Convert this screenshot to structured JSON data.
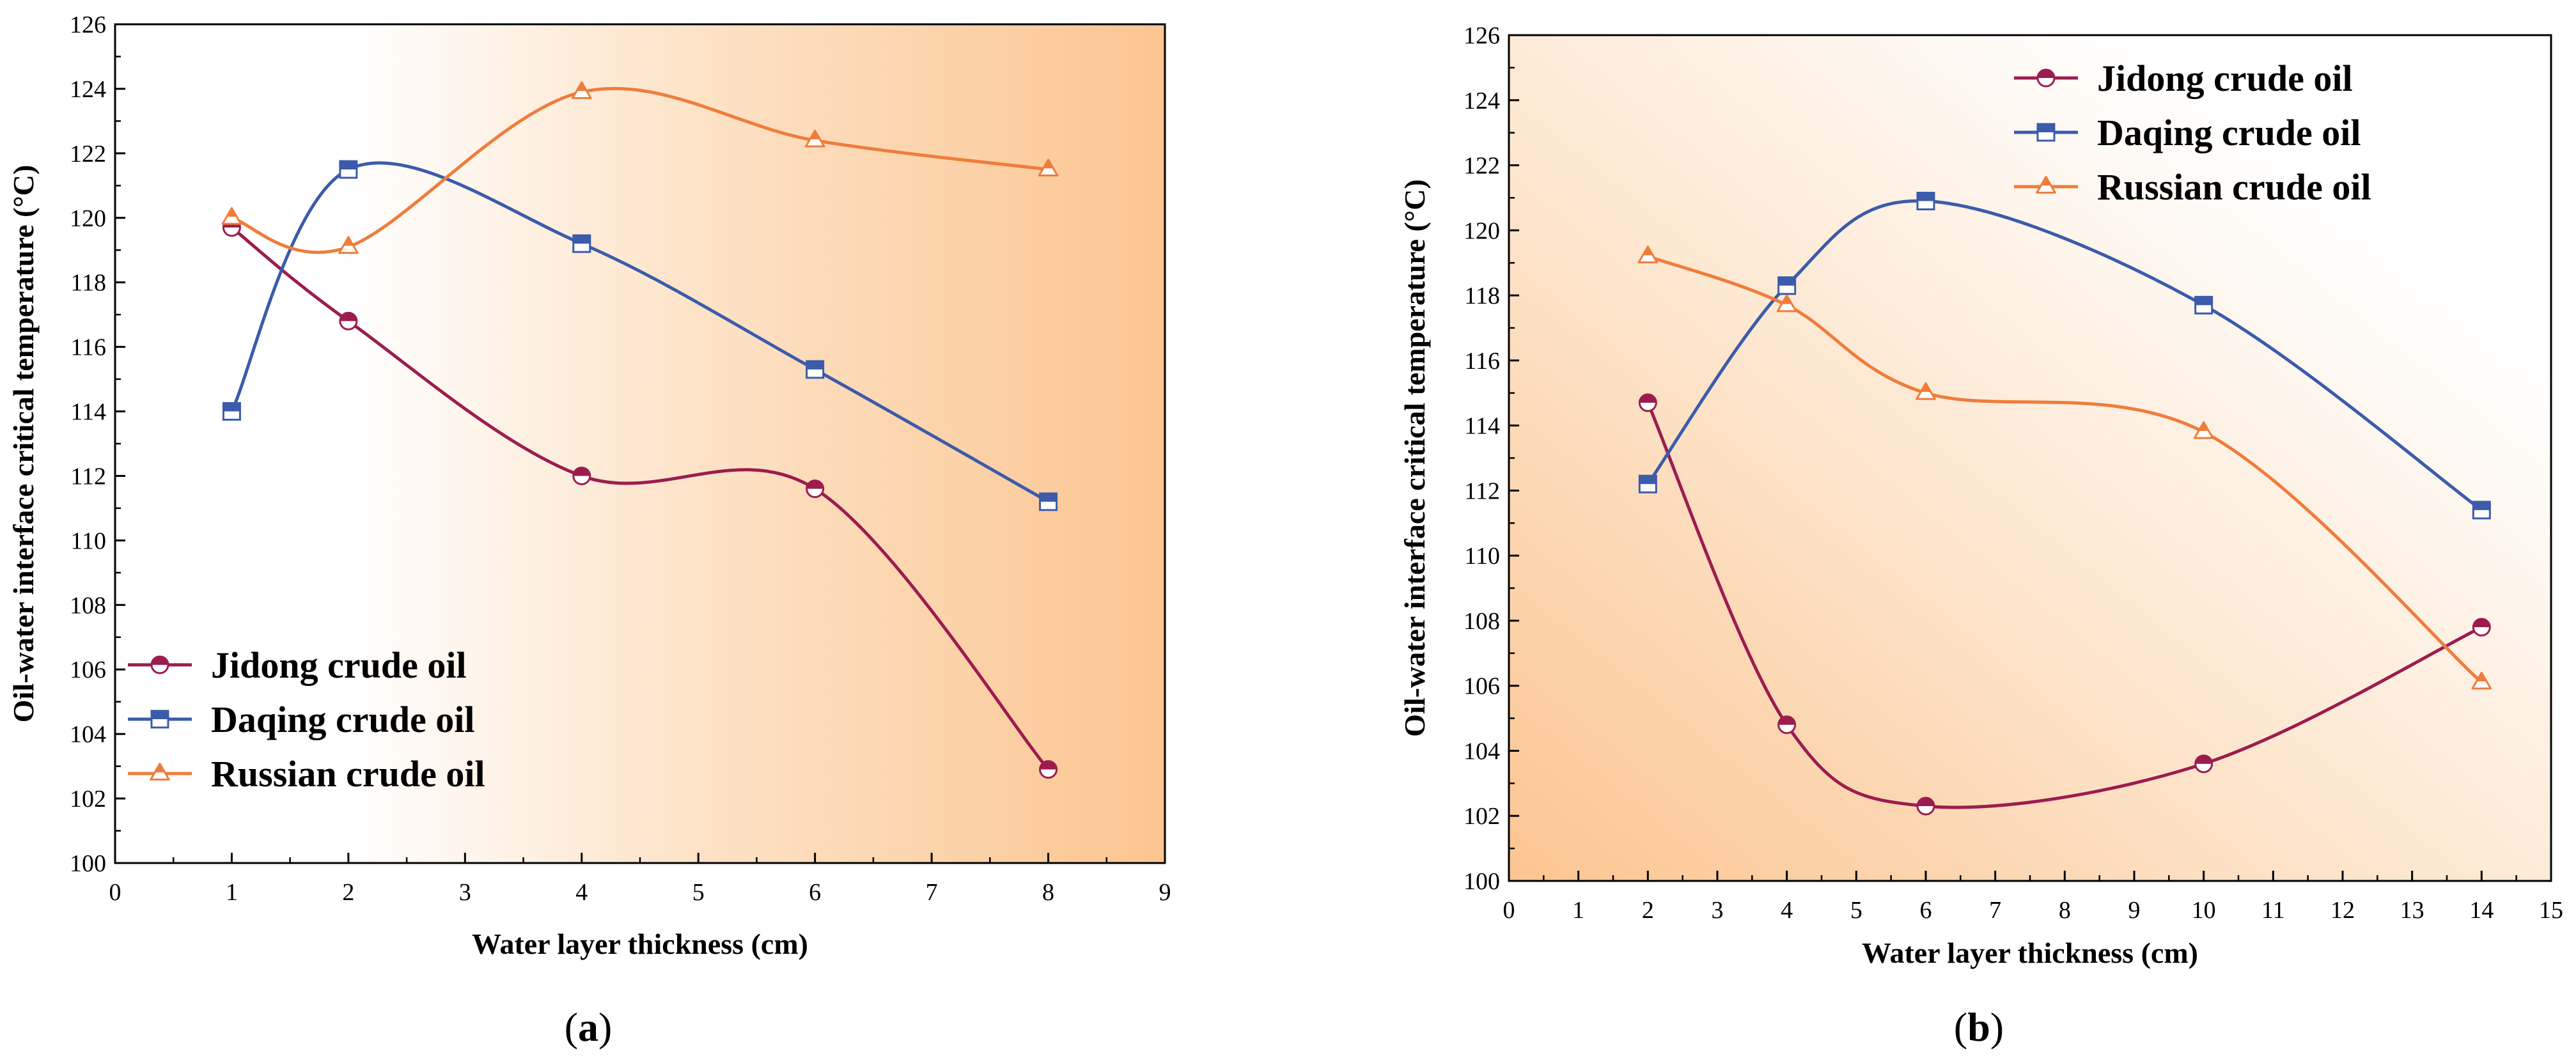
{
  "chart_data": [
    {
      "type": "line",
      "panel_label": {
        "open": "(",
        "letter": "a",
        "close": ")"
      },
      "xlabel": "Water layer thickness (cm)",
      "ylabel": "Oil-water interface critical temperature (°C)",
      "xlim": [
        0,
        9
      ],
      "ylim": [
        100,
        126
      ],
      "xticks": [
        0,
        1,
        2,
        3,
        4,
        5,
        6,
        7,
        8,
        9
      ],
      "yticks": [
        100,
        102,
        104,
        106,
        108,
        110,
        112,
        114,
        116,
        118,
        120,
        122,
        124,
        126
      ],
      "legend_position": "lower-left",
      "background_gradient": "white-left to orange-right",
      "series": [
        {
          "name": "Jidong crude oil",
          "color": "#9c1c4f",
          "marker": "circle-half",
          "x": [
            1,
            2,
            4,
            6,
            8
          ],
          "values": [
            119.7,
            116.8,
            112.0,
            111.6,
            102.9
          ]
        },
        {
          "name": "Daqing crude oil",
          "color": "#3b5bab",
          "marker": "square-half",
          "x": [
            1,
            2,
            4,
            6,
            8
          ],
          "values": [
            114.0,
            121.5,
            119.2,
            115.3,
            111.2
          ]
        },
        {
          "name": "Russian crude oil",
          "color": "#f07c3a",
          "marker": "triangle-half",
          "x": [
            1,
            2,
            4,
            6,
            8
          ],
          "values": [
            120.0,
            119.1,
            123.9,
            122.4,
            121.5
          ]
        }
      ]
    },
    {
      "type": "line",
      "panel_label": {
        "open": "(",
        "letter": "b",
        "close": ")"
      },
      "xlabel": "Water layer thickness (cm)",
      "ylabel": "Oil-water interface critical temperature (°C)",
      "xlim": [
        0,
        15
      ],
      "ylim": [
        100,
        126
      ],
      "xticks": [
        0,
        1,
        2,
        3,
        4,
        5,
        6,
        7,
        8,
        9,
        10,
        11,
        12,
        13,
        14,
        15
      ],
      "yticks": [
        100,
        102,
        104,
        106,
        108,
        110,
        112,
        114,
        116,
        118,
        120,
        122,
        124,
        126
      ],
      "legend_position": "top-right",
      "background_gradient": "orange-bottom-left to white-top-right",
      "series": [
        {
          "name": "Jidong crude oil",
          "color": "#9c1c4f",
          "marker": "circle-half",
          "x": [
            2,
            4,
            6,
            10,
            14
          ],
          "values": [
            114.7,
            104.8,
            102.3,
            103.6,
            107.8
          ]
        },
        {
          "name": "Daqing crude oil",
          "color": "#3b5bab",
          "marker": "square-half",
          "x": [
            2,
            4,
            6,
            10,
            14
          ],
          "values": [
            112.2,
            118.3,
            120.9,
            117.7,
            111.4
          ]
        },
        {
          "name": "Russian crude oil",
          "color": "#f07c3a",
          "marker": "triangle-half",
          "x": [
            2,
            4,
            6,
            10,
            14
          ],
          "values": [
            119.2,
            117.7,
            115.0,
            113.8,
            106.1
          ]
        }
      ]
    }
  ]
}
